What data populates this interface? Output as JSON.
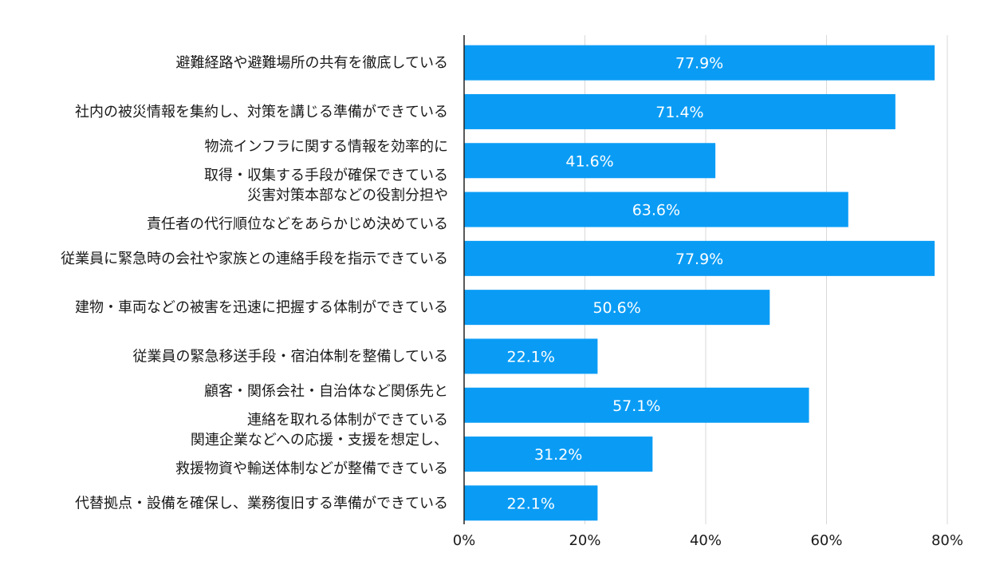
{
  "chart_data": {
    "type": "bar",
    "orientation": "horizontal",
    "categories": [
      [
        "避難経路や避難場所の共有を徹底している"
      ],
      [
        "社内の被災情報を集約し、対策を講じる準備ができている"
      ],
      [
        "物流インフラに関する情報を効率的に",
        "取得・収集する手段が確保できている"
      ],
      [
        "災害対策本部などの役割分担や",
        "責任者の代行順位などをあらかじめ決めている"
      ],
      [
        "従業員に緊急時の会社や家族との連絡手段を指示できている"
      ],
      [
        "建物・車両などの被害を迅速に把握する体制ができている"
      ],
      [
        "従業員の緊急移送手段・宿泊体制を整備している"
      ],
      [
        "顧客・関係会社・自治体など関係先と",
        "連絡を取れる体制ができている"
      ],
      [
        "関連企業などへの応援・支援を想定し、",
        "救援物資や輸送体制などが整備できている"
      ],
      [
        "代替拠点・設備を確保し、業務復旧する準備ができている"
      ]
    ],
    "values": [
      77.9,
      71.4,
      41.6,
      63.6,
      77.9,
      50.6,
      22.1,
      57.1,
      31.2,
      22.1
    ],
    "data_labels": [
      "77.9%",
      "71.4%",
      "41.6%",
      "63.6%",
      "77.9%",
      "50.6%",
      "22.1%",
      "57.1%",
      "31.2%",
      "22.1%"
    ],
    "xlim": [
      0,
      80
    ],
    "xticks": [
      0,
      20,
      40,
      60,
      80
    ],
    "xtick_labels": [
      "0%",
      "20%",
      "40%",
      "60%",
      "80%"
    ],
    "grid": "vertical",
    "legend": "none",
    "bar_color": "#0a9cf5",
    "grid_color": "#d9d9d9",
    "axis_color": "#222222"
  }
}
